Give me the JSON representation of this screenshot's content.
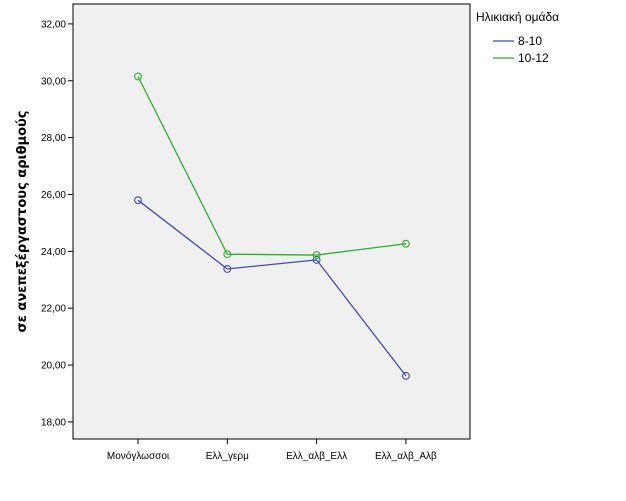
{
  "chart_data": {
    "type": "line",
    "categories": [
      "Μονόγλωσσοι",
      "Ελλ_γερμ",
      "Ελλ_αλβ_Ελλ",
      "Ελλ_αλβ_Αλβ"
    ],
    "series": [
      {
        "name": "8-10",
        "color": "#3f4fa6",
        "values": [
          25.8,
          23.38,
          23.7,
          19.62
        ]
      },
      {
        "name": "10-12",
        "color": "#2db02d",
        "values": [
          30.15,
          23.9,
          23.87,
          24.27
        ]
      }
    ],
    "title": "",
    "xlabel": "",
    "ylabel": "σε ανεπεξέργαστους αριθμούς",
    "ylim": [
      17.4,
      32.7
    ],
    "yticks": [
      "18,00",
      "20,00",
      "22,00",
      "24,00",
      "26,00",
      "28,00",
      "30,00",
      "32,00"
    ],
    "grid": false,
    "legend": {
      "title": "Ηλικιακή ομάδα",
      "placement": "right"
    },
    "plot_background": "#f0f0f0"
  }
}
